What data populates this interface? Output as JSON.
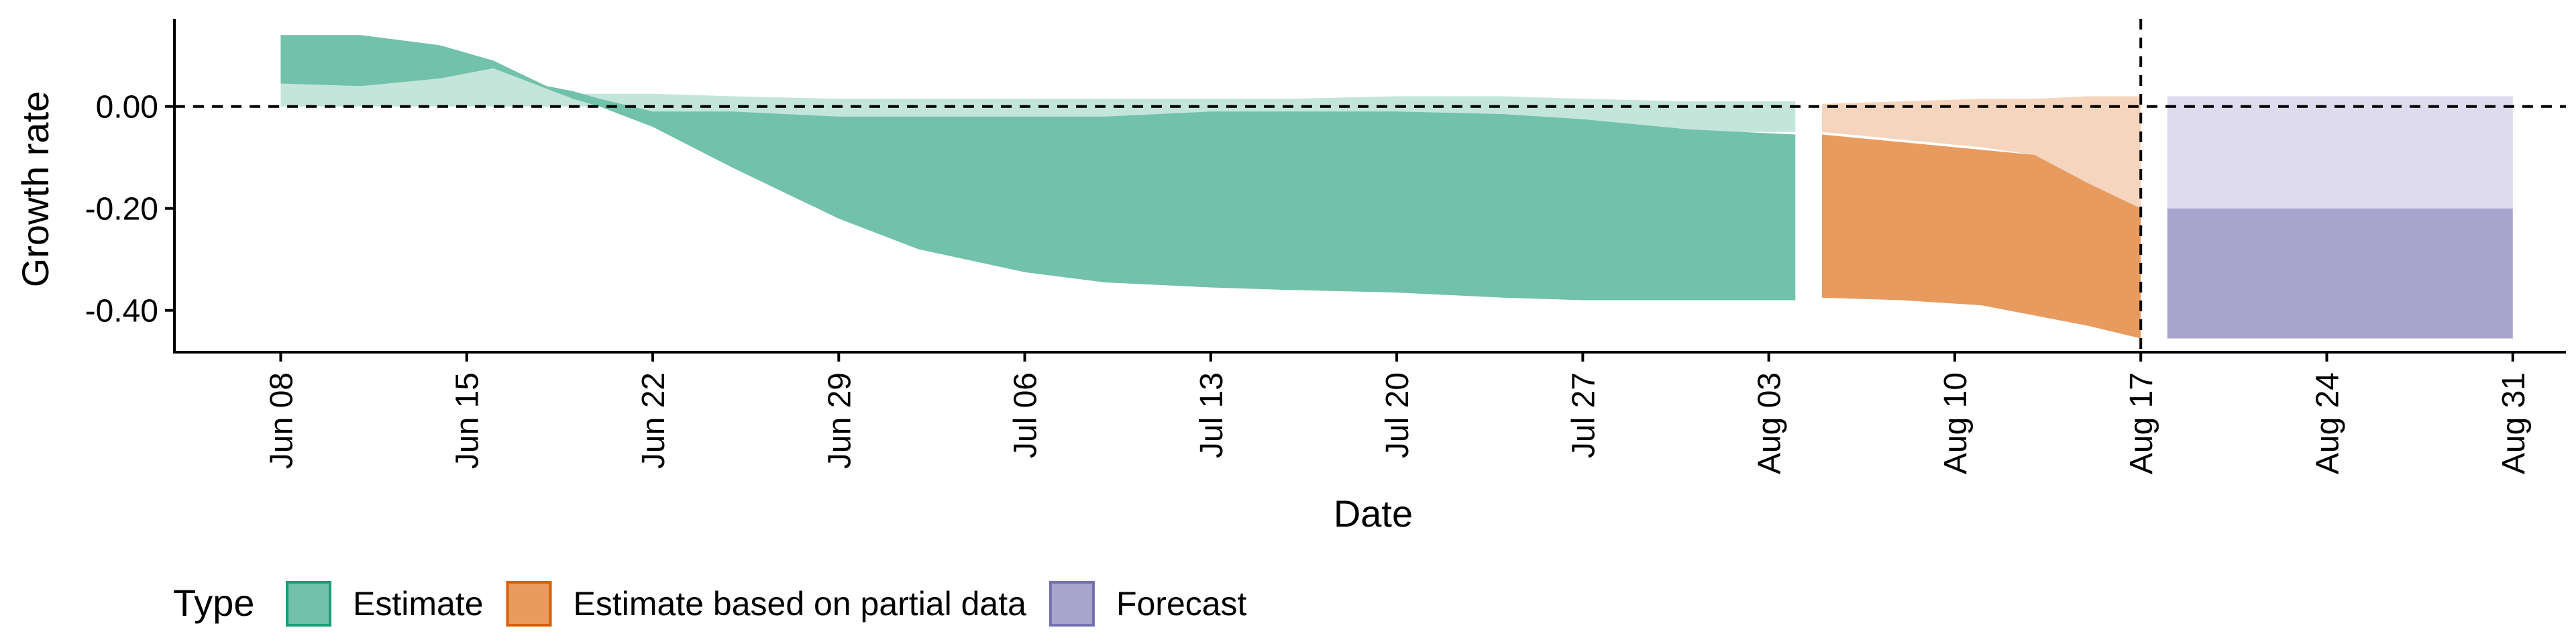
{
  "chart_data": {
    "type": "area",
    "xlabel": "Date",
    "ylabel": "Growth rate",
    "x_ticks": [
      "2020-06-08",
      "2020-06-15",
      "2020-06-22",
      "2020-06-29",
      "2020-07-06",
      "2020-07-13",
      "2020-07-20",
      "2020-07-27",
      "2020-08-03",
      "2020-08-10",
      "2020-08-17",
      "2020-08-24",
      "2020-08-31"
    ],
    "x_tick_labels": [
      "Jun 08",
      "Jun 15",
      "Jun 22",
      "Jun 29",
      "Jul 06",
      "Jul 13",
      "Jul 20",
      "Jul 27",
      "Aug 03",
      "Aug 10",
      "Aug 17",
      "Aug 24",
      "Aug 31"
    ],
    "y_ticks": [
      0.0,
      -0.2,
      -0.4
    ],
    "y_tick_labels": [
      "0.00",
      "-0.20",
      "-0.40"
    ],
    "xlim": [
      "2020-06-04",
      "2020-09-02"
    ],
    "ylim": [
      -0.482,
      0.172
    ],
    "hline_y": 0.0,
    "vline_x": "2020-08-17",
    "legend": {
      "position": "bottom-left",
      "title": "Type",
      "entries": [
        {
          "label": "Estimate",
          "fill": "#72c1aa",
          "stroke": "#1b9e77"
        },
        {
          "label": "Estimate based on partial data",
          "fill": "#e89b5f",
          "stroke": "#d95f02"
        },
        {
          "label": "Forecast",
          "fill": "#a8a5cd",
          "stroke": "#7570b3"
        }
      ]
    },
    "series": [
      {
        "name": "Estimate",
        "color_outer": "#c3e5da",
        "color_inner": "#72c1aa",
        "x": [
          "2020-06-08",
          "2020-06-11",
          "2020-06-14",
          "2020-06-16",
          "2020-06-18",
          "2020-06-19",
          "2020-06-20",
          "2020-06-22",
          "2020-06-25",
          "2020-06-29",
          "2020-07-02",
          "2020-07-06",
          "2020-07-09",
          "2020-07-13",
          "2020-07-16",
          "2020-07-20",
          "2020-07-24",
          "2020-07-27",
          "2020-07-31",
          "2020-08-04"
        ],
        "outer_upper": [
          0.045,
          0.055,
          0.07,
          0.08,
          0.04,
          0.025,
          0.025,
          0.025,
          0.02,
          0.015,
          0.015,
          0.015,
          0.015,
          0.015,
          0.015,
          0.02,
          0.02,
          0.015,
          0.01,
          0.01
        ],
        "outer_lower": [
          0.0,
          0.0,
          0.0,
          0.0,
          0.0,
          0.0,
          0.0,
          -0.01,
          -0.02,
          -0.04,
          -0.05,
          -0.055,
          -0.045,
          -0.035,
          -0.03,
          -0.03,
          -0.035,
          -0.045,
          -0.05,
          -0.05
        ],
        "inner_upper": [
          0.14,
          0.14,
          0.12,
          0.09,
          0.04,
          0.03,
          0.015,
          -0.01,
          -0.01,
          -0.02,
          -0.02,
          -0.02,
          -0.02,
          -0.01,
          -0.01,
          -0.01,
          -0.015,
          -0.025,
          -0.045,
          -0.055
        ],
        "inner_lower": [
          0.045,
          0.04,
          0.055,
          0.075,
          0.035,
          0.015,
          0.0,
          -0.04,
          -0.12,
          -0.22,
          -0.28,
          -0.325,
          -0.345,
          -0.355,
          -0.36,
          -0.365,
          -0.375,
          -0.38,
          -0.38,
          -0.38
        ]
      },
      {
        "name": "Estimate based on partial data",
        "color_outer": "#f5d5bd",
        "color_inner": "#e89b5f",
        "x": [
          "2020-08-05",
          "2020-08-08",
          "2020-08-11",
          "2020-08-13",
          "2020-08-15",
          "2020-08-17"
        ],
        "outer_upper": [
          0.005,
          0.01,
          0.015,
          0.015,
          0.02,
          0.02
        ],
        "outer_lower": [
          -0.05,
          -0.065,
          -0.08,
          -0.095,
          -0.15,
          -0.2
        ],
        "inner_upper": [
          -0.055,
          -0.07,
          -0.085,
          -0.095,
          -0.15,
          -0.2
        ],
        "inner_lower": [
          -0.375,
          -0.38,
          -0.39,
          -0.41,
          -0.43,
          -0.455
        ]
      },
      {
        "name": "Forecast",
        "color_outer": "#dddbed",
        "color_inner": "#a8a5cd",
        "x": [
          "2020-08-18",
          "2020-08-31"
        ],
        "outer_upper": [
          0.02,
          0.02
        ],
        "outer_lower": [
          -0.2,
          -0.2
        ],
        "inner_upper": [
          -0.2,
          -0.2
        ],
        "inner_lower": [
          -0.455,
          -0.455
        ]
      }
    ]
  }
}
